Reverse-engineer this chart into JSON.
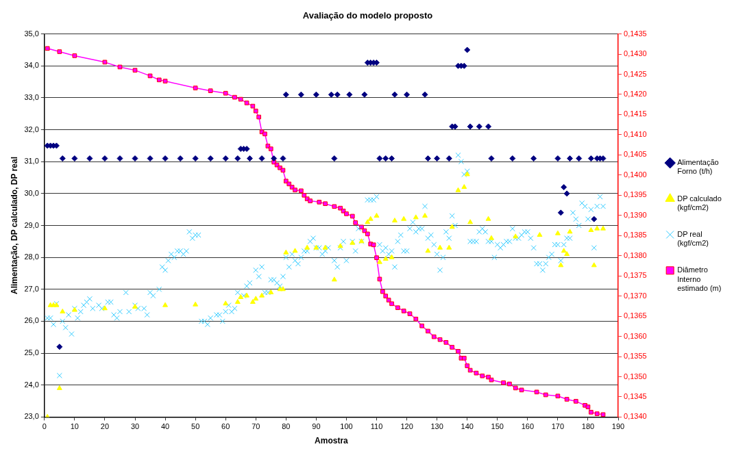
{
  "chart_data": {
    "type": "scatter",
    "title": "Avaliação do modelo proposto",
    "xlabel": "Amostra",
    "ylabel": "Alimentação, DP calculado, DP real",
    "xlim": [
      0,
      190
    ],
    "xticks": [
      0,
      10,
      20,
      30,
      40,
      50,
      60,
      70,
      80,
      90,
      100,
      110,
      120,
      130,
      140,
      150,
      160,
      170,
      180,
      190
    ],
    "ylim": [
      23,
      35
    ],
    "yticks": [
      {
        "value": 23,
        "label": "23,0"
      },
      {
        "value": 24,
        "label": "24,0"
      },
      {
        "value": 25,
        "label": "25,0"
      },
      {
        "value": 26,
        "label": "26,0"
      },
      {
        "value": 27,
        "label": "27,0"
      },
      {
        "value": 28,
        "label": "28,0"
      },
      {
        "value": 29,
        "label": "29,0"
      },
      {
        "value": 30,
        "label": "30,0"
      },
      {
        "value": 31,
        "label": "31,0"
      },
      {
        "value": 32,
        "label": "32,0"
      },
      {
        "value": 33,
        "label": "33,0"
      },
      {
        "value": 34,
        "label": "34,0"
      },
      {
        "value": 35,
        "label": "35,0"
      }
    ],
    "y2lim": [
      0.134,
      0.1435
    ],
    "y2ticks": [
      {
        "value": 0.134,
        "label": "0,1340"
      },
      {
        "value": 0.1345,
        "label": "0,1345"
      },
      {
        "value": 0.135,
        "label": "0,1350"
      },
      {
        "value": 0.1355,
        "label": "0,1355"
      },
      {
        "value": 0.136,
        "label": "0,1360"
      },
      {
        "value": 0.1365,
        "label": "0,1365"
      },
      {
        "value": 0.137,
        "label": "0,1370"
      },
      {
        "value": 0.1375,
        "label": "0,1375"
      },
      {
        "value": 0.138,
        "label": "0,1380"
      },
      {
        "value": 0.1385,
        "label": "0,1385"
      },
      {
        "value": 0.139,
        "label": "0,1390"
      },
      {
        "value": 0.1395,
        "label": "0,1395"
      },
      {
        "value": 0.14,
        "label": "0,1400"
      },
      {
        "value": 0.1405,
        "label": "0,1405"
      },
      {
        "value": 0.141,
        "label": "0,1410"
      },
      {
        "value": 0.1415,
        "label": "0,1415"
      },
      {
        "value": 0.142,
        "label": "0,1420"
      },
      {
        "value": 0.1425,
        "label": "0,1425"
      },
      {
        "value": 0.143,
        "label": "0,1430"
      },
      {
        "value": 0.1435,
        "label": "0,1435"
      }
    ],
    "grid": "y",
    "legend": "right",
    "series": [
      {
        "name": "Alimentação Forno (t/h)",
        "type": "scatter",
        "marker": "diamond",
        "color": "#000080",
        "x": [
          1,
          2,
          3,
          4,
          5,
          6,
          10,
          15,
          20,
          25,
          30,
          35,
          40,
          45,
          50,
          55,
          60,
          64,
          65,
          66,
          67,
          68,
          72,
          76,
          79,
          80,
          85,
          90,
          95,
          96,
          97,
          101,
          106,
          107,
          108,
          109,
          110,
          111,
          113,
          115,
          116,
          120,
          126,
          127,
          130,
          134,
          135,
          136,
          137,
          138,
          139,
          140,
          141,
          144,
          147,
          148,
          155,
          162,
          170,
          171,
          172,
          173,
          174,
          177,
          181,
          182,
          183,
          184,
          185
        ],
        "values": [
          31.5,
          31.5,
          31.5,
          31.5,
          25.2,
          31.1,
          31.1,
          31.1,
          31.1,
          31.1,
          31.1,
          31.1,
          31.1,
          31.1,
          31.1,
          31.1,
          31.1,
          31.1,
          31.4,
          31.4,
          31.4,
          31.1,
          31.1,
          31.1,
          31.1,
          33.1,
          33.1,
          33.1,
          33.1,
          31.1,
          33.1,
          33.1,
          33.1,
          34.1,
          34.1,
          34.1,
          34.1,
          31.1,
          31.1,
          31.1,
          33.1,
          33.1,
          33.1,
          31.1,
          31.1,
          31.1,
          32.1,
          32.1,
          34.0,
          34.0,
          34.0,
          34.5,
          32.1,
          32.1,
          32.1,
          31.1,
          31.1,
          31.1,
          31.1,
          29.4,
          30.2,
          30.0,
          31.1,
          31.1,
          31.1,
          29.2,
          31.1,
          31.1,
          31.1
        ]
      },
      {
        "name": "DP calculado (kgf/cm2)",
        "type": "scatter",
        "marker": "triangle",
        "color": "#ffff00",
        "x": [
          1,
          2,
          3,
          4,
          5,
          6,
          10,
          20,
          30,
          40,
          50,
          60,
          64,
          65,
          67,
          69,
          70,
          72,
          75,
          78,
          79,
          80,
          83,
          87,
          90,
          93,
          96,
          98,
          102,
          105,
          107,
          108,
          110,
          111,
          113,
          115,
          116,
          119,
          123,
          126,
          127,
          131,
          134,
          135,
          137,
          139,
          140,
          141,
          147,
          148,
          156,
          164,
          170,
          171,
          172,
          173,
          174,
          181,
          182,
          183,
          185
        ],
        "values": [
          23.0,
          26.5,
          26.5,
          26.5,
          23.9,
          26.3,
          26.35,
          26.4,
          26.45,
          26.5,
          26.52,
          26.55,
          26.6,
          26.75,
          26.8,
          26.6,
          26.7,
          26.8,
          26.9,
          27.0,
          27.0,
          28.15,
          28.2,
          28.3,
          28.3,
          28.3,
          27.3,
          28.35,
          28.45,
          28.5,
          29.1,
          29.2,
          29.3,
          27.85,
          27.95,
          28.0,
          29.15,
          29.2,
          29.25,
          29.3,
          28.2,
          28.3,
          28.3,
          28.95,
          30.1,
          30.2,
          30.6,
          29.1,
          29.2,
          28.6,
          28.65,
          28.7,
          28.75,
          27.75,
          28.2,
          28.1,
          28.8,
          28.85,
          27.75,
          28.9,
          28.9
        ]
      },
      {
        "name": "DP real (kgf/cm2)",
        "type": "scatter",
        "marker": "cross",
        "color": "#33ccff",
        "x": [
          1,
          2,
          3,
          4,
          5,
          6,
          7,
          8,
          9,
          10,
          11,
          12,
          13,
          14,
          15,
          16,
          18,
          19,
          21,
          22,
          23,
          24,
          25,
          27,
          28,
          30,
          31,
          33,
          34,
          35,
          36,
          38,
          39,
          40,
          41,
          42,
          43,
          44,
          45,
          46,
          47,
          48,
          49,
          50,
          51,
          52,
          53,
          54,
          55,
          57,
          58,
          59,
          60,
          61,
          62,
          63,
          64,
          66,
          67,
          68,
          70,
          71,
          72,
          73,
          74,
          75,
          76,
          77,
          78,
          79,
          80,
          81,
          82,
          83,
          84,
          85,
          86,
          87,
          88,
          89,
          90,
          91,
          92,
          93,
          94,
          96,
          97,
          98,
          99,
          100,
          102,
          103,
          104,
          105,
          107,
          108,
          109,
          110,
          111,
          112,
          113,
          114,
          115,
          116,
          117,
          118,
          119,
          120,
          121,
          122,
          123,
          124,
          125,
          126,
          127,
          128,
          129,
          130,
          131,
          132,
          133,
          134,
          135,
          136,
          137,
          138,
          139,
          140,
          141,
          142,
          143,
          144,
          145,
          146,
          147,
          148,
          149,
          150,
          151,
          152,
          153,
          154,
          155,
          156,
          157,
          158,
          159,
          160,
          161,
          162,
          163,
          164,
          165,
          166,
          167,
          168,
          169,
          170,
          171,
          172,
          173,
          174,
          175,
          176,
          177,
          178,
          179,
          180,
          181,
          182,
          183,
          184,
          185
        ],
        "values": [
          26.1,
          26.1,
          25.9,
          26.55,
          24.3,
          26.0,
          25.8,
          26.2,
          25.6,
          26.4,
          26.1,
          26.3,
          26.5,
          26.6,
          26.7,
          26.4,
          26.5,
          26.4,
          26.6,
          26.6,
          26.2,
          26.1,
          26.3,
          26.9,
          26.3,
          26.5,
          26.4,
          26.4,
          26.2,
          26.9,
          26.8,
          27.0,
          27.7,
          27.6,
          27.9,
          28.1,
          28.0,
          28.2,
          28.2,
          28.1,
          28.2,
          28.8,
          28.6,
          28.7,
          28.7,
          26.0,
          26.0,
          25.9,
          26.1,
          26.2,
          26.2,
          26.0,
          26.3,
          26.5,
          26.3,
          26.4,
          26.9,
          26.8,
          27.1,
          27.2,
          27.6,
          27.4,
          27.7,
          26.9,
          26.9,
          27.3,
          27.3,
          27.2,
          27.1,
          27.4,
          28.0,
          27.7,
          28.1,
          27.9,
          27.8,
          28.0,
          28.2,
          28.2,
          28.5,
          28.6,
          28.3,
          28.3,
          28.1,
          28.2,
          28.3,
          27.9,
          27.7,
          28.3,
          28.5,
          27.9,
          28.5,
          28.2,
          28.9,
          28.5,
          29.8,
          29.8,
          29.8,
          29.9,
          28.4,
          28.2,
          28.3,
          28.1,
          28.2,
          27.7,
          28.5,
          28.7,
          28.2,
          28.2,
          28.9,
          29.1,
          28.8,
          28.9,
          28.9,
          29.6,
          28.6,
          28.7,
          28.4,
          28.1,
          27.6,
          28.0,
          28.8,
          28.6,
          29.3,
          29.0,
          31.2,
          31.0,
          30.6,
          30.7,
          28.5,
          28.5,
          28.5,
          28.8,
          28.9,
          28.8,
          28.5,
          28.5,
          28.0,
          28.4,
          28.3,
          28.4,
          28.5,
          28.5,
          28.9,
          28.6,
          28.6,
          28.7,
          28.8,
          28.8,
          28.6,
          28.3,
          27.8,
          27.8,
          27.6,
          27.8,
          28.0,
          28.1,
          28.4,
          28.4,
          27.9,
          28.4,
          28.6,
          28.6,
          29.4,
          29.2,
          29.0,
          29.7,
          29.6,
          29.2,
          29.5,
          28.3,
          29.6,
          29.9,
          29.6
        ]
      },
      {
        "name": "Diâmetro Interno estimado (m)",
        "type": "line",
        "axis": "y2",
        "marker": "square",
        "color": "#ff00ff",
        "x": [
          1,
          5,
          10,
          20,
          25,
          30,
          35,
          38,
          40,
          50,
          55,
          60,
          63,
          65,
          67,
          69,
          70,
          71,
          72,
          73,
          74,
          75,
          76,
          77,
          78,
          79,
          80,
          81,
          82,
          83,
          85,
          86,
          87,
          88,
          91,
          93,
          96,
          98,
          99,
          100,
          102,
          103,
          105,
          106,
          107,
          108,
          109,
          110,
          111,
          112,
          113,
          114,
          115,
          117,
          119,
          121,
          123,
          125,
          127,
          129,
          131,
          133,
          135,
          137,
          138,
          139,
          140,
          141,
          143,
          145,
          147,
          148,
          152,
          154,
          156,
          158,
          163,
          166,
          170,
          173,
          176,
          179,
          180,
          181,
          183,
          185
        ],
        "values": [
          0.14314,
          0.14306,
          0.14296,
          0.1428,
          0.14268,
          0.1426,
          0.14246,
          0.14236,
          0.14233,
          0.14216,
          0.14209,
          0.14203,
          0.14193,
          0.14188,
          0.14179,
          0.14171,
          0.14159,
          0.14144,
          0.14107,
          0.14102,
          0.14072,
          0.14065,
          0.14032,
          0.14025,
          0.14018,
          0.14012,
          0.13985,
          0.13978,
          0.1397,
          0.13963,
          0.13961,
          0.1395,
          0.13941,
          0.13936,
          0.13933,
          0.13929,
          0.13922,
          0.13918,
          0.13911,
          0.13904,
          0.13898,
          0.13882,
          0.13871,
          0.13862,
          0.13854,
          0.13829,
          0.13827,
          0.13795,
          0.13742,
          0.13711,
          0.137,
          0.1369,
          0.13681,
          0.13671,
          0.13663,
          0.13656,
          0.13643,
          0.13626,
          0.13613,
          0.13599,
          0.13592,
          0.13585,
          0.13573,
          0.13563,
          0.13546,
          0.13546,
          0.13527,
          0.13516,
          0.13509,
          0.13502,
          0.13499,
          0.13492,
          0.13485,
          0.13482,
          0.13472,
          0.13467,
          0.13462,
          0.13455,
          0.13452,
          0.13444,
          0.13439,
          0.13429,
          0.13425,
          0.13412,
          0.13408,
          0.13406
        ]
      }
    ]
  }
}
